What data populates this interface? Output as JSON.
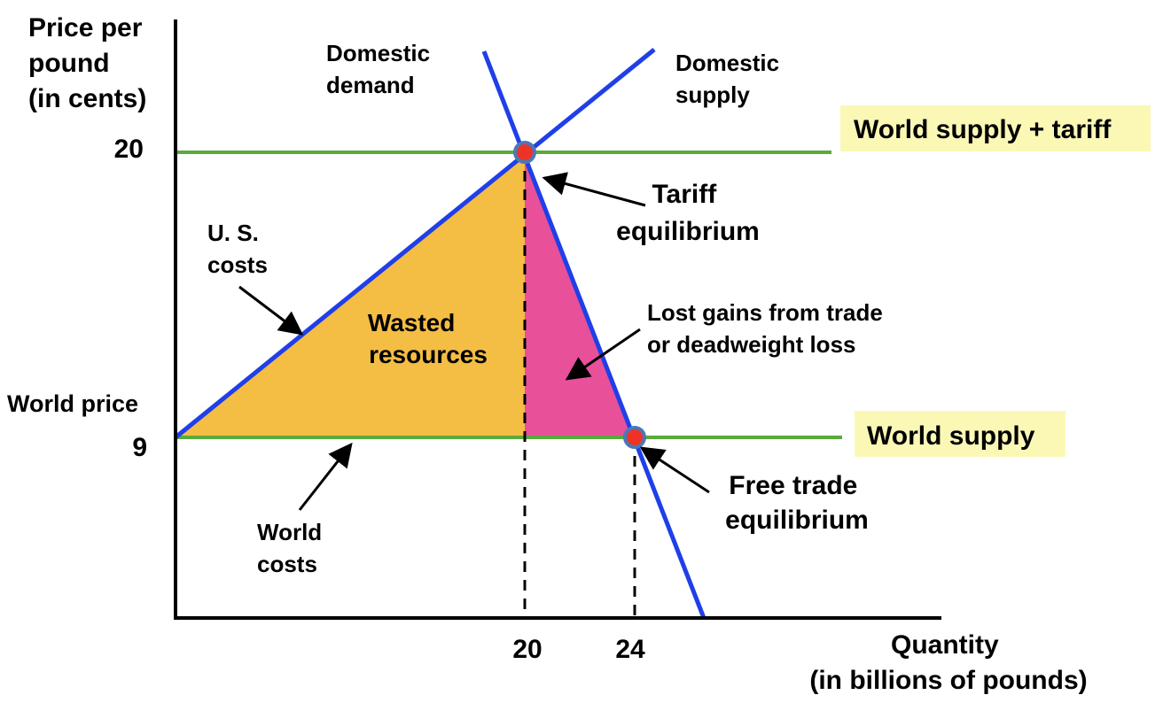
{
  "axes": {
    "y_label_lines": [
      "Price per",
      "pound",
      "(in cents)"
    ],
    "x_label_lines": [
      "Quantity",
      "(in billions of pounds)"
    ],
    "y_ticks": [
      {
        "label": "20",
        "value": 20
      },
      {
        "label": "9",
        "value": 9
      }
    ],
    "x_ticks": [
      {
        "label": "20",
        "value": 20
      },
      {
        "label": "24",
        "value": 24
      }
    ]
  },
  "labels": {
    "world_price": "World price",
    "domestic_demand": [
      "Domestic",
      "demand"
    ],
    "domestic_supply": [
      "Domestic",
      "supply"
    ],
    "world_supply_tariff": "World supply + tariff",
    "world_supply": "World supply",
    "tariff_equilibrium": [
      "Tariff",
      "equilibrium"
    ],
    "free_trade_equilibrium": [
      "Free trade",
      "equilibrium"
    ],
    "us_costs": [
      "U. S.",
      "costs"
    ],
    "world_costs": [
      "World",
      "costs"
    ],
    "wasted_resources": [
      "Wasted",
      "resources"
    ],
    "deadweight_loss": [
      "Lost gains from trade",
      "or deadweight loss"
    ]
  },
  "colors": {
    "axis": "#000000",
    "curve": "#1f3fe8",
    "price_line": "#5aaa3c",
    "wasted_fill": "#f4bd44",
    "deadweight_fill": "#e8509a",
    "label_box": "#fbf8b6",
    "point_fill": "#ee3326",
    "point_ring": "#4a78b8"
  }
}
